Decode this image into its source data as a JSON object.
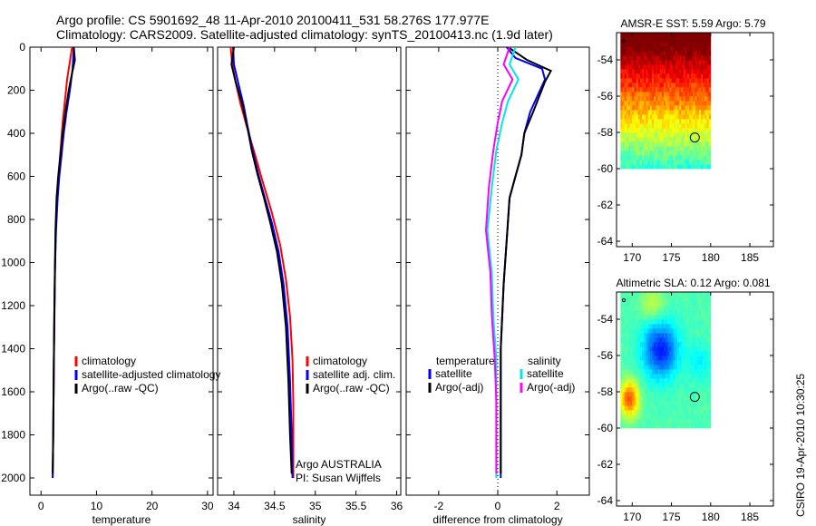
{
  "header": {
    "line1": "Argo profile: CS 5901692_48 11-Apr-2010 20100411_531 58.276S 177.977E",
    "line2": "Climatology: CARS2009. Satellite-adjusted climatology: synTS_20100413.nc (1.9d later)"
  },
  "side_stamp": "CSIRO 19-Apr-2010 10:30:25",
  "colors": {
    "clim": "#ff0000",
    "sat": "#0000ff",
    "argo": "#000000",
    "sat_diff_s": "#00e5ee",
    "argo_diff_s": "#ff00ff"
  },
  "chart_data": [
    {
      "id": "temperature",
      "type": "line",
      "xlabel": "temperature",
      "xlim": [
        -2,
        31
      ],
      "ylim": [
        2080,
        0
      ],
      "xticks": [
        "0",
        "10",
        "20",
        "30"
      ],
      "yticks": [
        "0",
        "200",
        "400",
        "600",
        "800",
        "1000",
        "1200",
        "1400",
        "1600",
        "1800",
        "2000"
      ],
      "legend": [
        "climatology",
        "satellite-adjusted climatology",
        "Argo(..raw -QC)"
      ],
      "series": [
        {
          "name": "climatology",
          "color": "#ff0000",
          "x": [
            5.6,
            5.3,
            4.7,
            4.3,
            3.9,
            3.6,
            3.3,
            3.0,
            2.8,
            2.6,
            2.5,
            2.4,
            2.3,
            2.2,
            2.1
          ],
          "y": [
            0,
            50,
            150,
            250,
            350,
            450,
            550,
            650,
            750,
            900,
            1100,
            1300,
            1500,
            1800,
            2000
          ]
        },
        {
          "name": "satellite-adjusted climatology",
          "color": "#0000ff",
          "x": [
            5.9,
            5.8,
            5.7,
            5.2,
            4.6,
            4.1,
            3.7,
            3.3,
            3.0,
            2.7,
            2.5,
            2.4,
            2.3,
            2.2,
            2.1
          ],
          "y": [
            0,
            50,
            100,
            200,
            300,
            400,
            500,
            600,
            700,
            850,
            1050,
            1250,
            1500,
            1800,
            2000
          ]
        },
        {
          "name": "Argo(..raw -QC)",
          "color": "#000000",
          "x": [
            5.9,
            6.1,
            5.6,
            5.0,
            4.4,
            3.9,
            3.5,
            3.1,
            2.8,
            2.6,
            2.5,
            2.4,
            2.3,
            2.2,
            2.1
          ],
          "y": [
            0,
            60,
            120,
            200,
            300,
            400,
            500,
            600,
            700,
            850,
            1050,
            1250,
            1500,
            1800,
            1980
          ]
        }
      ]
    },
    {
      "id": "salinity",
      "type": "line",
      "xlabel": "salinity",
      "xlim": [
        33.8,
        36.05
      ],
      "ylim": [
        2080,
        0
      ],
      "xticks": [
        "34",
        "34.5",
        "35",
        "35.5",
        "36"
      ],
      "legend": [
        "climatology",
        "satellite adj. clim.",
        "Argo(..raw -QC)"
      ],
      "annotation": [
        "Argo AUSTRALIA",
        "PI: Susan Wijffels"
      ],
      "series": [
        {
          "name": "climatology",
          "color": "#ff0000",
          "x": [
            33.96,
            33.98,
            34.02,
            34.08,
            34.16,
            34.26,
            34.35,
            34.46,
            34.57,
            34.64,
            34.69,
            34.72,
            34.73,
            34.73,
            34.73
          ],
          "y": [
            0,
            80,
            160,
            260,
            370,
            500,
            620,
            760,
            920,
            1080,
            1250,
            1450,
            1650,
            1850,
            2000
          ]
        },
        {
          "name": "satellite adj. clim.",
          "color": "#0000ff",
          "x": [
            33.99,
            34.0,
            34.05,
            34.12,
            34.17,
            34.23,
            34.3,
            34.38,
            34.47,
            34.55,
            34.61,
            34.66,
            34.69,
            34.71,
            34.72
          ],
          "y": [
            0,
            80,
            160,
            270,
            370,
            480,
            590,
            700,
            820,
            950,
            1100,
            1300,
            1550,
            1800,
            2000
          ]
        },
        {
          "name": "Argo(..raw -QC)",
          "color": "#000000",
          "x": [
            34.0,
            33.97,
            34.02,
            34.1,
            34.17,
            34.22,
            34.29,
            34.37,
            34.45,
            34.53,
            34.59,
            34.64,
            34.67,
            34.69,
            34.71
          ],
          "y": [
            0,
            80,
            160,
            260,
            380,
            480,
            590,
            700,
            820,
            950,
            1100,
            1300,
            1550,
            1800,
            1980
          ]
        }
      ]
    },
    {
      "id": "difference",
      "type": "line",
      "xlabel": "difference from climatology",
      "xlim": [
        -3.1,
        3.1
      ],
      "ylim": [
        2080,
        0
      ],
      "xticks": [
        "-2",
        "0",
        "2"
      ],
      "legend_left": [
        "temperature",
        "satellite",
        "Argo(-adj)"
      ],
      "legend_right": [
        "salinity",
        "satellite",
        "Argo(-adj)"
      ],
      "series": [
        {
          "name": "temperature satellite",
          "color": "#0000ff",
          "x": [
            0.3,
            0.6,
            1.5,
            1.6,
            1.1,
            0.9,
            0.8,
            0.6,
            0.4,
            0.3,
            0.2,
            0.1,
            0.1,
            0.1
          ],
          "y": [
            0,
            50,
            100,
            150,
            300,
            400,
            500,
            600,
            700,
            900,
            1100,
            1400,
            1700,
            2000
          ]
        },
        {
          "name": "temperature Argo(-adj)",
          "color": "#000000",
          "x": [
            0.35,
            1.0,
            1.8,
            1.6,
            1.2,
            0.9,
            0.8,
            0.6,
            0.4,
            0.3,
            0.2,
            0.1,
            0.1,
            0.1
          ],
          "y": [
            0,
            60,
            110,
            160,
            300,
            400,
            500,
            600,
            700,
            900,
            1100,
            1400,
            1700,
            1980
          ]
        },
        {
          "name": "salinity satellite",
          "color": "#00e5ee",
          "x": [
            0.6,
            0.4,
            0.7,
            0.35,
            0.15,
            -0.05,
            -0.2,
            -0.35,
            -0.2,
            -0.15,
            -0.05,
            -0.05,
            -0.05,
            -0.05
          ],
          "y": [
            0,
            80,
            150,
            250,
            350,
            480,
            650,
            850,
            1050,
            1250,
            1450,
            1650,
            1850,
            2000
          ]
        },
        {
          "name": "salinity Argo(-adj)",
          "color": "#ff00ff",
          "x": [
            0.4,
            0.2,
            0.5,
            0.15,
            0.0,
            -0.15,
            -0.3,
            -0.4,
            -0.25,
            -0.2,
            -0.1,
            -0.05,
            -0.05,
            -0.05
          ],
          "y": [
            0,
            80,
            150,
            250,
            350,
            480,
            650,
            850,
            1050,
            1250,
            1450,
            1650,
            1850,
            1980
          ]
        }
      ]
    },
    {
      "id": "sst-map",
      "type": "heatmap",
      "title": "AMSR-E SST: 5.59 Argo: 5.79",
      "xlim": [
        168,
        188
      ],
      "ylim": [
        -64.3,
        -52.5
      ],
      "xticks": [
        "170",
        "175",
        "180",
        "185"
      ],
      "yticks": [
        "-54",
        "-56",
        "-58",
        "-60",
        "-62",
        "-64"
      ],
      "data_extent": {
        "lon": [
          168.5,
          180
        ],
        "lat": [
          -60,
          -52.5
        ]
      },
      "float_position": {
        "lon": 177.98,
        "lat": -58.28
      }
    },
    {
      "id": "sla-map",
      "type": "heatmap",
      "title": "Altimetric SLA: 0.12 Argo: 0.081",
      "xlim": [
        168,
        188
      ],
      "ylim": [
        -64.3,
        -52.5
      ],
      "xticks": [
        "170",
        "175",
        "180",
        "185"
      ],
      "yticks": [
        "-54",
        "-56",
        "-58",
        "-60",
        "-62",
        "-64"
      ],
      "data_extent": {
        "lon": [
          168.5,
          180
        ],
        "lat": [
          -60,
          -52.5
        ]
      },
      "float_position": {
        "lon": 177.98,
        "lat": -58.28
      }
    }
  ]
}
